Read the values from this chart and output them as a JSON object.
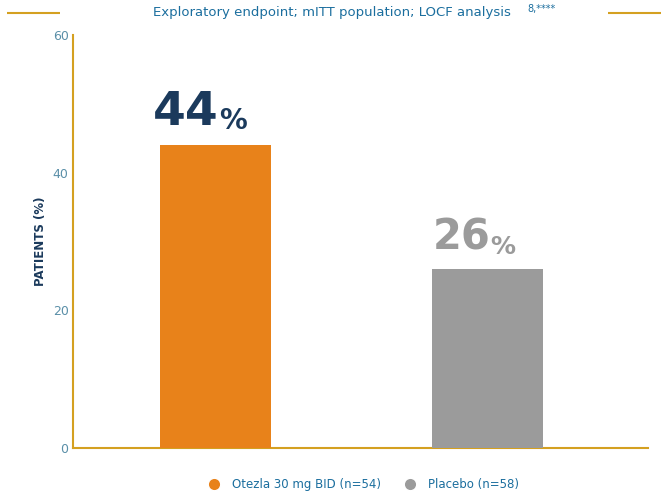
{
  "categories": [
    "Otezla 30 mg BID (n=54)",
    "Placebo (n=58)"
  ],
  "values": [
    44,
    26
  ],
  "bar_colors": [
    "#E8821A",
    "#9B9B9B"
  ],
  "bar_label_numbers": [
    "44",
    "26"
  ],
  "bar_label_pct": "%",
  "number_color_0": "#1B3A5C",
  "pct_color_0": "#1B3A5C",
  "number_color_1": "#9B9B9B",
  "pct_color_1": "#9B9B9B",
  "ylabel": "PATIENTS (%)",
  "ylim": [
    0,
    60
  ],
  "yticks": [
    0,
    20,
    40,
    60
  ],
  "title": "Exploratory endpoint; mITT population; LOCF analysis ",
  "title_super": "8,****",
  "title_color": "#1B6E9E",
  "title_fontsize": 9.5,
  "title_line_color": "#D4A020",
  "legend_labels": [
    "Otezla 30 mg BID (n=54)",
    "Placebo (n=58)"
  ],
  "legend_colors": [
    "#E8821A",
    "#9B9B9B"
  ],
  "legend_text_color": "#1B6E9E",
  "background_color": "#FFFFFF",
  "bar_width": 0.18,
  "number_fontsize_0": 34,
  "number_fontsize_1": 30,
  "pct_fontsize_0": 20,
  "pct_fontsize_1": 18,
  "spine_color": "#D4A020",
  "tick_color": "#5A8FA8",
  "x_positions": [
    0.28,
    0.72
  ]
}
